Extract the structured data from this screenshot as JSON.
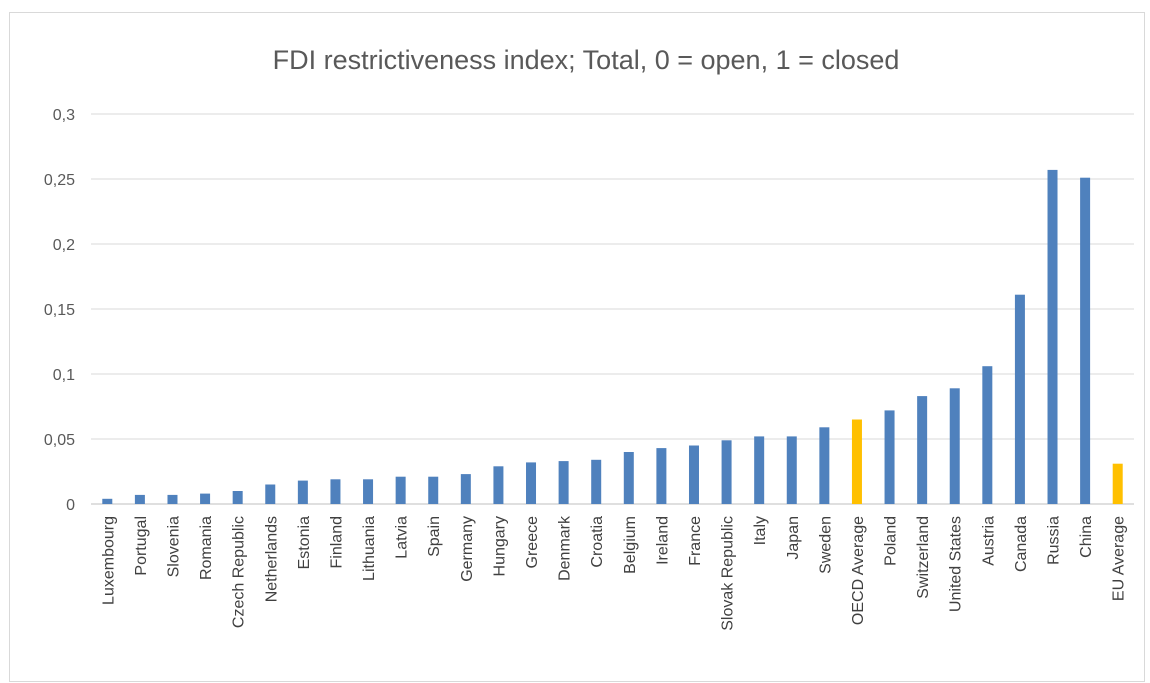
{
  "chart_data": {
    "type": "bar",
    "title": "FDI restrictiveness index; Total, 0 = open, 1 = closed",
    "xlabel": "",
    "ylabel": "",
    "ylim": [
      0,
      0.3
    ],
    "y_ticks": [
      "0",
      "0,05",
      "0,1",
      "0,15",
      "0,2",
      "0,25",
      "0,3"
    ],
    "y_tick_values": [
      0,
      0.05,
      0.1,
      0.15,
      0.2,
      0.25,
      0.3
    ],
    "grid": true,
    "legend": "none",
    "colors": {
      "default_bar": "#4f81bd",
      "highlight_bar": "#ffc000"
    },
    "categories": [
      "Luxembourg",
      "Portugal",
      "Slovenia",
      "Romania",
      "Czech Republic",
      "Netherlands",
      "Estonia",
      "Finland",
      "Lithuania",
      "Latvia",
      "Spain",
      "Germany",
      "Hungary",
      "Greece",
      "Denmark",
      "Croatia",
      "Belgium",
      "Ireland",
      "France",
      "Slovak Republic",
      "Italy",
      "Japan",
      "Sweden",
      "OECD Average",
      "Poland",
      "Switzerland",
      "United States",
      "Austria",
      "Canada",
      "Russia",
      "China",
      "EU Average"
    ],
    "values": [
      0.004,
      0.007,
      0.007,
      0.008,
      0.01,
      0.015,
      0.018,
      0.019,
      0.019,
      0.021,
      0.021,
      0.023,
      0.029,
      0.032,
      0.033,
      0.034,
      0.04,
      0.043,
      0.045,
      0.049,
      0.052,
      0.052,
      0.059,
      0.065,
      0.072,
      0.083,
      0.089,
      0.106,
      0.161,
      0.257,
      0.251,
      0.031
    ],
    "highlighted": [
      "OECD Average",
      "EU Average"
    ]
  }
}
